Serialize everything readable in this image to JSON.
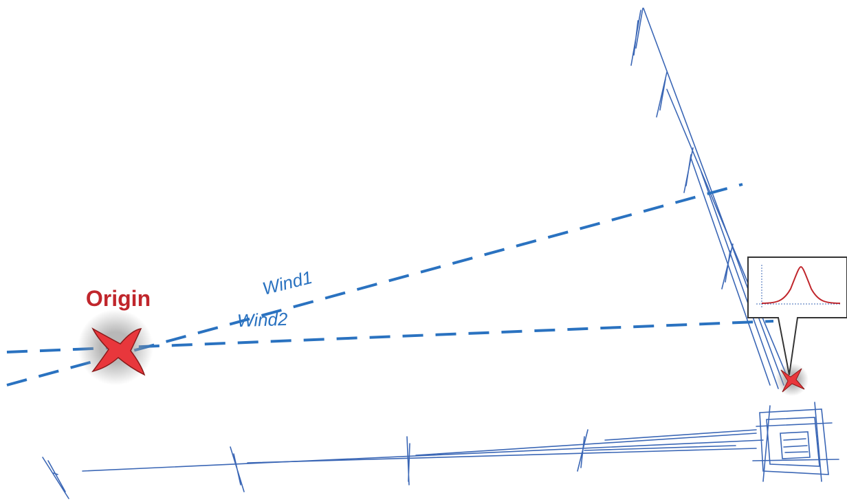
{
  "labels": {
    "origin": "Origin",
    "wind1": "Wind1",
    "wind2": "Wind2"
  }
}
